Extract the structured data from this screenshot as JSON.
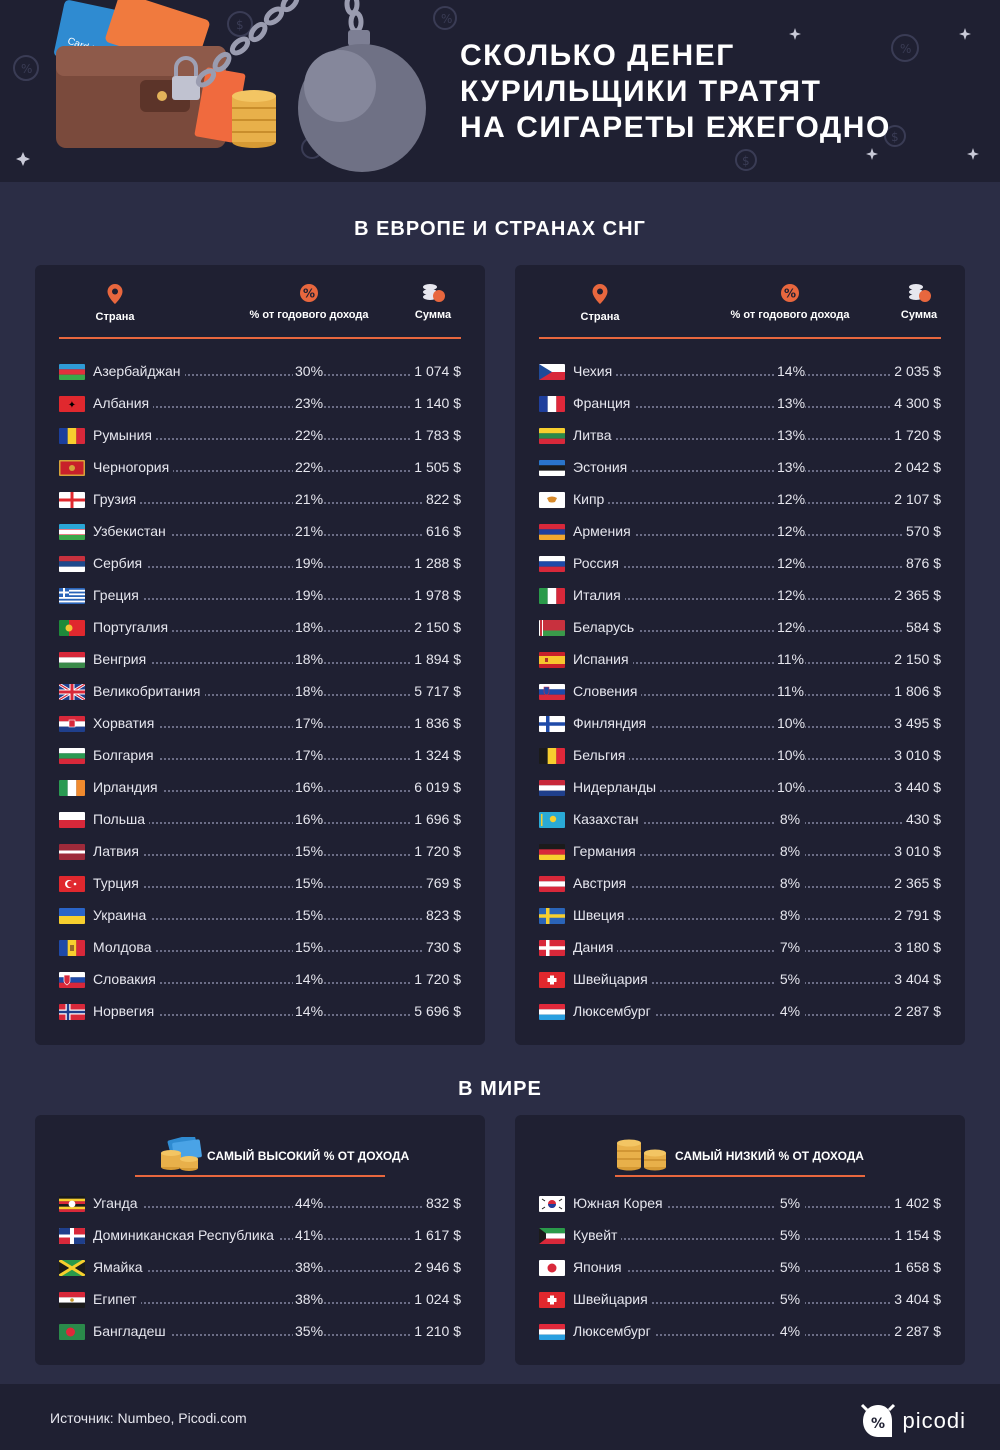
{
  "header": {
    "title_lines": [
      "СКОЛЬКО ДЕНЕГ",
      "КУРИЛЬЩИКИ ТРАТЯТ",
      "НА СИГАРЕТЫ ЕЖЕГОДНО"
    ],
    "card_text": "Card Ho"
  },
  "europe": {
    "heading": "В ЕВРОПЕ И СТРАНАХ СНГ",
    "columns": {
      "country": "Страна",
      "percent": "% от годового дохода",
      "sum": "Сумма"
    },
    "left": [
      {
        "country": "Азербайджан",
        "pct": "30%",
        "sum": "1 074 $",
        "flag": "az"
      },
      {
        "country": "Албания",
        "pct": "23%",
        "sum": "1 140 $",
        "flag": "al"
      },
      {
        "country": "Румыния",
        "pct": "22%",
        "sum": "1 783 $",
        "flag": "ro"
      },
      {
        "country": "Черногория",
        "pct": "22%",
        "sum": "1 505 $",
        "flag": "me"
      },
      {
        "country": "Грузия",
        "pct": "21%",
        "sum": "822 $",
        "flag": "ge"
      },
      {
        "country": "Узбекистан",
        "pct": "21%",
        "sum": "616 $",
        "flag": "uz"
      },
      {
        "country": "Сербия",
        "pct": "19%",
        "sum": "1 288 $",
        "flag": "rs"
      },
      {
        "country": "Греция",
        "pct": "19%",
        "sum": "1 978 $",
        "flag": "gr"
      },
      {
        "country": "Португалия",
        "pct": "18%",
        "sum": "2 150 $",
        "flag": "pt"
      },
      {
        "country": "Венгрия",
        "pct": "18%",
        "sum": "1 894 $",
        "flag": "hu"
      },
      {
        "country": "Великобритания",
        "pct": "18%",
        "sum": "5 717 $",
        "flag": "gb"
      },
      {
        "country": "Хорватия",
        "pct": "17%",
        "sum": "1 836 $",
        "flag": "hr"
      },
      {
        "country": "Болгария",
        "pct": "17%",
        "sum": "1 324 $",
        "flag": "bg"
      },
      {
        "country": "Ирландия",
        "pct": "16%",
        "sum": "6 019 $",
        "flag": "ie"
      },
      {
        "country": "Польша",
        "pct": "16%",
        "sum": "1 696 $",
        "flag": "pl"
      },
      {
        "country": "Латвия",
        "pct": "15%",
        "sum": "1 720 $",
        "flag": "lv"
      },
      {
        "country": "Турция",
        "pct": "15%",
        "sum": "769 $",
        "flag": "tr"
      },
      {
        "country": "Украина",
        "pct": "15%",
        "sum": "823 $",
        "flag": "ua"
      },
      {
        "country": "Молдова",
        "pct": "15%",
        "sum": "730 $",
        "flag": "md"
      },
      {
        "country": "Словакия",
        "pct": "14%",
        "sum": "1 720 $",
        "flag": "sk"
      },
      {
        "country": "Норвегия",
        "pct": "14%",
        "sum": "5 696 $",
        "flag": "no"
      }
    ],
    "right": [
      {
        "country": "Чехия",
        "pct": "14%",
        "sum": "2 035 $",
        "flag": "cz"
      },
      {
        "country": "Франция",
        "pct": "13%",
        "sum": "4 300 $",
        "flag": "fr"
      },
      {
        "country": "Литва",
        "pct": "13%",
        "sum": "1 720 $",
        "flag": "lt"
      },
      {
        "country": "Эстония",
        "pct": "13%",
        "sum": "2 042 $",
        "flag": "ee"
      },
      {
        "country": "Кипр",
        "pct": "12%",
        "sum": "2 107 $",
        "flag": "cy"
      },
      {
        "country": "Армения",
        "pct": "12%",
        "sum": "570 $",
        "flag": "am"
      },
      {
        "country": "Россия",
        "pct": "12%",
        "sum": "876 $",
        "flag": "ru"
      },
      {
        "country": "Италия",
        "pct": "12%",
        "sum": "2 365 $",
        "flag": "it"
      },
      {
        "country": "Беларусь",
        "pct": "12%",
        "sum": "584 $",
        "flag": "by"
      },
      {
        "country": "Испания",
        "pct": "11%",
        "sum": "2 150 $",
        "flag": "es"
      },
      {
        "country": "Словения",
        "pct": "11%",
        "sum": "1 806 $",
        "flag": "si"
      },
      {
        "country": "Финляндия",
        "pct": "10%",
        "sum": "3 495 $",
        "flag": "fi"
      },
      {
        "country": "Бельгия",
        "pct": "10%",
        "sum": "3 010 $",
        "flag": "be"
      },
      {
        "country": "Нидерланды",
        "pct": "10%",
        "sum": "3 440 $",
        "flag": "nl"
      },
      {
        "country": "Казахстан",
        "pct": "8%",
        "sum": "430 $",
        "flag": "kz"
      },
      {
        "country": "Германия",
        "pct": "8%",
        "sum": "3 010 $",
        "flag": "de"
      },
      {
        "country": "Австрия",
        "pct": "8%",
        "sum": "2 365 $",
        "flag": "at"
      },
      {
        "country": "Швеция",
        "pct": "8%",
        "sum": "2 791 $",
        "flag": "se"
      },
      {
        "country": "Дания",
        "pct": "7%",
        "sum": "3 180 $",
        "flag": "dk"
      },
      {
        "country": "Швейцария",
        "pct": "5%",
        "sum": "3 404 $",
        "flag": "ch"
      },
      {
        "country": "Люксембург",
        "pct": "4%",
        "sum": "2 287 $",
        "flag": "lu"
      }
    ]
  },
  "world": {
    "heading": "В МИРЕ",
    "highest_label": "САМЫЙ ВЫСОКИЙ % ОТ ДОХОДА",
    "lowest_label": "САМЫЙ НИЗКИЙ % ОТ ДОХОДА",
    "highest": [
      {
        "country": "Уганда",
        "pct": "44%",
        "sum": "832 $",
        "flag": "ug"
      },
      {
        "country": "Доминиканская Республика",
        "pct": "41%",
        "sum": "1 617 $",
        "flag": "do"
      },
      {
        "country": "Ямайка",
        "pct": "38%",
        "sum": "2 946 $",
        "flag": "jm"
      },
      {
        "country": "Египет",
        "pct": "38%",
        "sum": "1 024 $",
        "flag": "eg"
      },
      {
        "country": "Бангладеш",
        "pct": "35%",
        "sum": "1 210 $",
        "flag": "bd"
      }
    ],
    "lowest": [
      {
        "country": "Южная Корея",
        "pct": "5%",
        "sum": "1 402 $",
        "flag": "kr"
      },
      {
        "country": "Кувейт",
        "pct": "5%",
        "sum": "1 154 $",
        "flag": "kw"
      },
      {
        "country": "Япония",
        "pct": "5%",
        "sum": "1 658 $",
        "flag": "jp"
      },
      {
        "country": "Швейцария",
        "pct": "5%",
        "sum": "3 404 $",
        "flag": "ch"
      },
      {
        "country": "Люксембург",
        "pct": "4%",
        "sum": "2 287 $",
        "flag": "lu"
      }
    ]
  },
  "footer": {
    "source": "Источник: Numbeo, Picodi.com",
    "logo": "picodi"
  },
  "colors": {
    "background": "#2b2d45",
    "card": "#1f2032",
    "accent": "#e8673e"
  }
}
